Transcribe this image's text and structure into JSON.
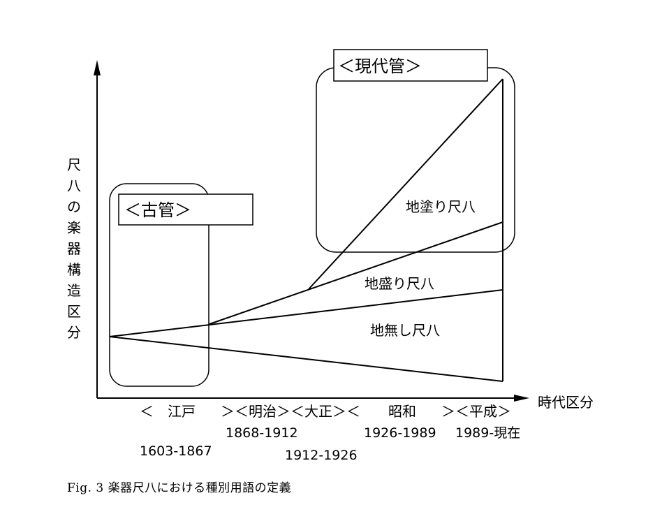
{
  "y_axis_label": [
    "尺",
    "八",
    "の",
    "楽",
    "器",
    "構",
    "造",
    "区",
    "分"
  ],
  "x_axis_label": "時代区分",
  "boxes": {
    "old": "＜古管＞",
    "modern": "＜現代管＞"
  },
  "lines": {
    "jinuri": "地塗り尺八",
    "jimori": "地盛り尺八",
    "jinashi": "地無し尺八"
  },
  "periods": {
    "edo": "＜　江戸",
    "meiji": "＞＜明治＞＜大正＞＜",
    "showa": "昭和",
    "heisei": "＞＜平成＞"
  },
  "years": {
    "edo": "1603-1867",
    "meiji": "1868-1912",
    "taisho": "1912-1926",
    "showa": "1926-1989",
    "heisei": "1989-現在"
  },
  "caption": "Fig. 3 楽器尺八における種別用語の定義"
}
